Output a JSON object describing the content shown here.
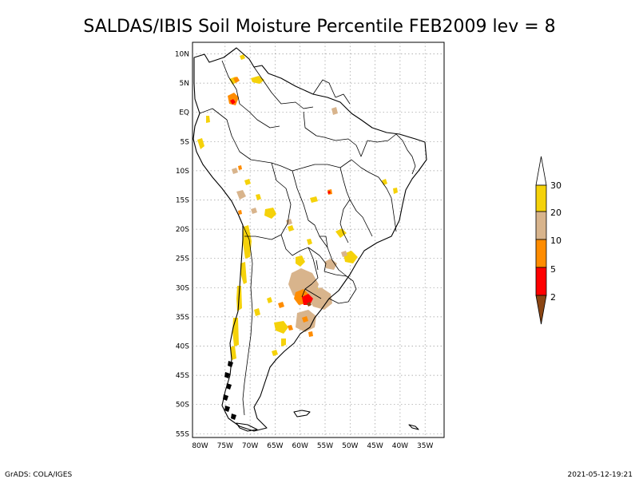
{
  "title": "SALDAS/IBIS Soil Moisture Percentile FEB2009 lev = 8",
  "footer": {
    "left": "GrADS: COLA/IGES",
    "right": "2021-05-12-19:21"
  },
  "map": {
    "lon_labels": [
      "80W",
      "75W",
      "70W",
      "65W",
      "60W",
      "55W",
      "50W",
      "45W",
      "40W",
      "35W"
    ],
    "lat_labels": [
      "10N",
      "5N",
      "EQ",
      "5S",
      "10S",
      "15S",
      "20S",
      "25S",
      "30S",
      "35S",
      "40S",
      "45S",
      "50S",
      "55S"
    ]
  },
  "legend": {
    "labels": [
      "30",
      "20",
      "10",
      "5",
      "2"
    ],
    "colors": {
      "above_30": "#ffffff",
      "20_30": "#f5d20a",
      "10_20": "#d8b48c",
      "5_10": "#ff8c00",
      "2_5": "#ff0000",
      "below_2": "#8b4513"
    }
  }
}
